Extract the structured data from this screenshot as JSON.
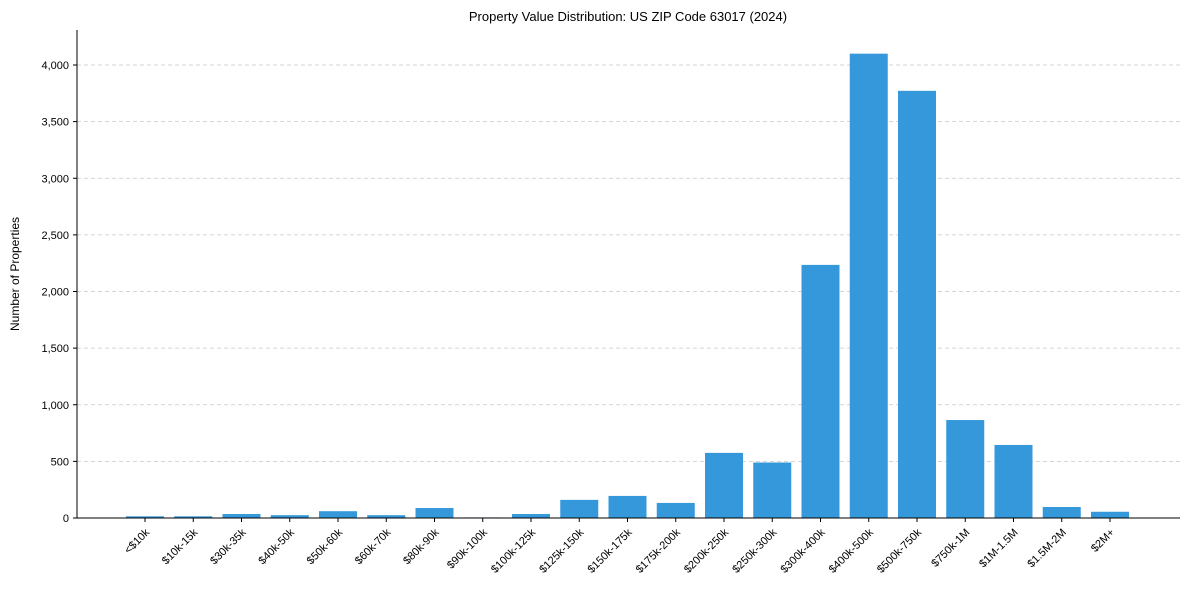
{
  "chart_data": {
    "type": "bar",
    "title": "Property Value Distribution: US ZIP Code 63017 (2024)",
    "xlabel": "",
    "ylabel": "Number of Properties",
    "ylim": [
      0,
      4300
    ],
    "yticks": [
      0,
      500,
      1000,
      1500,
      2000,
      2500,
      3000,
      3500,
      4000
    ],
    "ytick_labels": [
      "0",
      "500",
      "1,000",
      "1,500",
      "2,000",
      "2,500",
      "3,000",
      "3,500",
      "4,000"
    ],
    "grid": "y-dashed",
    "bar_color": "#3498db",
    "categories": [
      "<$10k",
      "$10k-15k",
      "$30k-35k",
      "$40k-50k",
      "$50k-60k",
      "$60k-70k",
      "$80k-90k",
      "$90k-100k",
      "$100k-125k",
      "$125k-150k",
      "$150k-175k",
      "$175k-200k",
      "$200k-250k",
      "$250k-300k",
      "$300k-400k",
      "$400k-500k",
      "$500k-750k",
      "$750k-1M",
      "$1M-1.5M",
      "$1.5M-2M",
      "$2M+"
    ],
    "values": [
      15,
      15,
      35,
      25,
      60,
      25,
      88,
      5,
      35,
      160,
      195,
      133,
      575,
      490,
      2235,
      4100,
      3772,
      865,
      645,
      97,
      55
    ]
  }
}
